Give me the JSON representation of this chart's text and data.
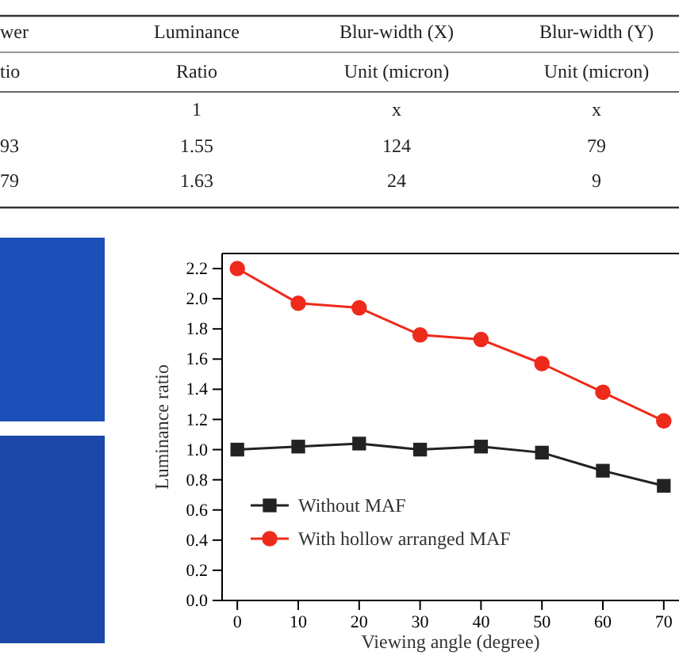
{
  "chart_data": {
    "type": "line",
    "xlabel": "Viewing angle (degree)",
    "ylabel": "Luminance ratio",
    "x": [
      0,
      10,
      20,
      30,
      40,
      50,
      60,
      70
    ],
    "series": [
      {
        "name": "Without MAF",
        "color": "#222222",
        "marker": "square",
        "values": [
          1.0,
          1.02,
          1.04,
          1.0,
          1.02,
          0.98,
          0.86,
          0.76
        ]
      },
      {
        "name": "With hollow arranged MAF",
        "color": "#ee2a1b",
        "marker": "circle",
        "values": [
          2.2,
          1.97,
          1.94,
          1.76,
          1.73,
          1.57,
          1.38,
          1.19
        ]
      }
    ],
    "xlim": [
      -2.5,
      72.5
    ],
    "xticks": [
      0,
      10,
      20,
      30,
      40,
      50,
      60,
      70
    ],
    "ylim": [
      0,
      2.3
    ],
    "yticks": [
      {
        "value": 0,
        "label": "0.0"
      },
      0.2,
      0.4,
      0.6,
      0.8,
      {
        "value": 1,
        "label": "1.0"
      },
      1.2,
      1.4,
      1.6,
      1.8,
      {
        "value": 2,
        "label": "2.0"
      },
      2.2
    ],
    "grid": false,
    "legend": "bottom left",
    "line_style": "solid",
    "annotations": [
      "wer",
      "Luminance",
      "Blur-width (X)",
      "Blur-width (Y)",
      "tio",
      "Ratio",
      "Unit (micron)",
      "Unit (micron)",
      "1",
      "x",
      "x",
      "93",
      "1.55",
      "124",
      "79",
      "79",
      "1.63",
      "24",
      "9"
    ]
  }
}
